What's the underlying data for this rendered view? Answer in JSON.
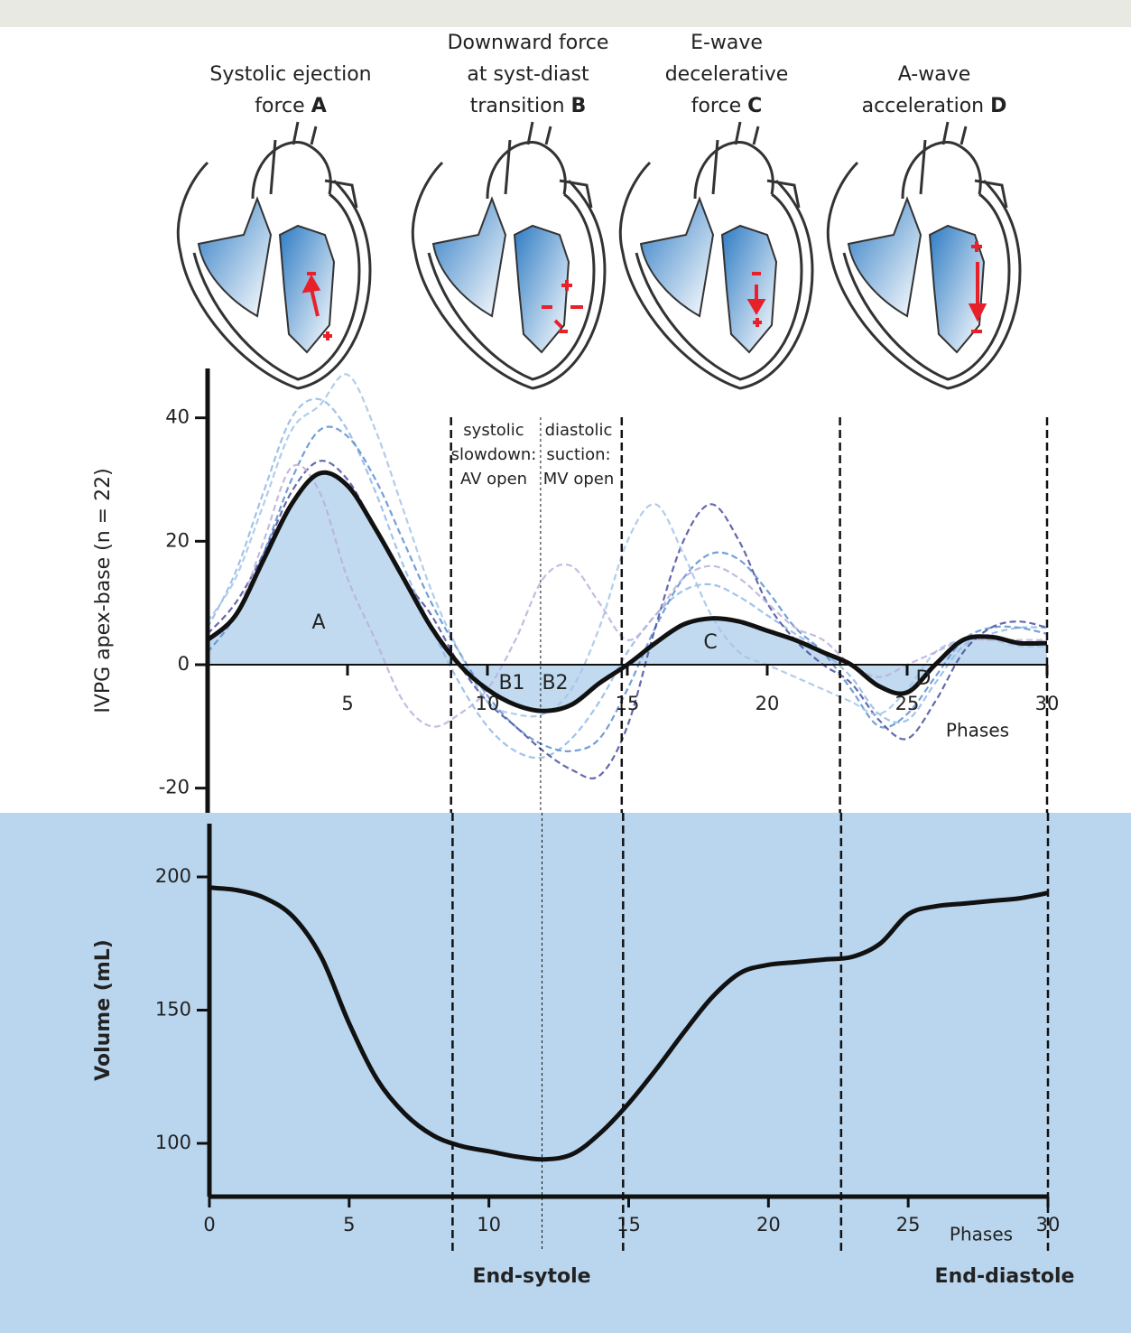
{
  "headings": [
    {
      "lines": [
        "Systolic ejection",
        "force"
      ],
      "letter": "A"
    },
    {
      "lines": [
        "Downward force",
        "at syst-diast",
        "transition"
      ],
      "letter": "B"
    },
    {
      "lines": [
        "E-wave",
        "decelerative",
        "force"
      ],
      "letter": "C"
    },
    {
      "lines": [
        "A-wave",
        "acceleration"
      ],
      "letter": "D"
    }
  ],
  "chart_data": [
    {
      "type": "line",
      "y_label": "IVPG apex-base (n = 22)",
      "x_label": "Phases",
      "x": [
        0,
        1,
        2,
        3,
        4,
        5,
        6,
        7,
        8,
        9,
        10,
        11,
        12,
        13,
        14,
        15,
        16,
        17,
        18,
        19,
        20,
        21,
        22,
        23,
        24,
        25,
        26,
        27,
        28,
        29,
        30
      ],
      "xlim": [
        0,
        30
      ],
      "xticks": [
        5,
        10,
        15,
        20,
        25,
        30
      ],
      "ylim": [
        -24,
        48
      ],
      "yticks": [
        -20,
        0,
        20,
        40
      ],
      "series": [
        {
          "color": "#111111",
          "fill": "#bad6ee",
          "values": [
            4,
            8,
            17,
            26,
            31,
            29,
            22,
            14,
            6,
            0,
            -4,
            -6.5,
            -7.5,
            -6.5,
            -3,
            0,
            3.5,
            6.5,
            7.5,
            7,
            5.5,
            4,
            2,
            0,
            -3.5,
            -4.5,
            0,
            4,
            4.5,
            3.5,
            3.5
          ]
        }
      ],
      "individual_series": [
        {
          "color": "#8fb8e6",
          "values": [
            6,
            15,
            28,
            40,
            43,
            38,
            28,
            16,
            6,
            -3,
            -10,
            -14,
            -15,
            -12,
            -6,
            2,
            8,
            12,
            13,
            11,
            8,
            5,
            2,
            -2,
            -8,
            -9,
            -3,
            3,
            5,
            6,
            6
          ]
        },
        {
          "color": "#5b8fd0",
          "values": [
            2,
            8,
            18,
            30,
            38,
            37,
            30,
            20,
            10,
            2,
            -5,
            -10,
            -13,
            -14,
            -12,
            -4,
            6,
            14,
            18,
            17,
            12,
            6,
            2,
            -4,
            -10,
            -8,
            -2,
            4,
            6,
            6,
            5
          ]
        },
        {
          "color": "#4a4f9e",
          "values": [
            5,
            10,
            18,
            28,
            33,
            30,
            22,
            14,
            8,
            0,
            -6,
            -10,
            -14,
            -17,
            -18,
            -10,
            6,
            20,
            26,
            20,
            10,
            4,
            0,
            -3,
            -9,
            -12,
            -6,
            2,
            6,
            7,
            6
          ]
        },
        {
          "color": "#a5c4e8",
          "values": [
            7,
            14,
            26,
            38,
            42,
            47,
            38,
            25,
            12,
            2,
            -6,
            -8,
            -8,
            -4,
            6,
            20,
            26,
            18,
            8,
            2,
            0,
            -2,
            -4,
            -6,
            -8,
            -4,
            2,
            4,
            4,
            3,
            3
          ]
        },
        {
          "color": "#b8b0dc",
          "values": [
            4,
            8,
            20,
            32,
            28,
            14,
            4,
            -6,
            -10,
            -8,
            -4,
            4,
            14,
            16,
            10,
            4,
            8,
            14,
            16,
            14,
            10,
            6,
            4,
            0,
            -2,
            0,
            2,
            4,
            4,
            4,
            4
          ]
        }
      ],
      "vlines": [
        {
          "x": 8.7,
          "style": "dashed"
        },
        {
          "x": 11.9,
          "style": "dotted"
        },
        {
          "x": 14.8,
          "style": "dashed"
        },
        {
          "x": 22.6,
          "style": "dashed"
        },
        {
          "x": 30,
          "style": "dashed"
        }
      ],
      "annotations": [
        "A",
        "B1",
        "B2",
        "C",
        "D"
      ],
      "phase_notes": [
        [
          "systolic",
          "slowdown:",
          "AV open"
        ],
        [
          "diastolic",
          "suction:",
          "MV open"
        ]
      ]
    },
    {
      "type": "line",
      "y_label": "Volume (mL)",
      "x_label": "Phases",
      "x": [
        0,
        1,
        2,
        3,
        4,
        5,
        6,
        7,
        8,
        9,
        10,
        11,
        12,
        13,
        14,
        15,
        16,
        17,
        18,
        19,
        20,
        21,
        22,
        23,
        24,
        25,
        26,
        27,
        28,
        29,
        30
      ],
      "xlim": [
        0,
        30
      ],
      "xticks": [
        0,
        5,
        10,
        15,
        20,
        25,
        30
      ],
      "ylim": [
        80,
        220
      ],
      "yticks": [
        100,
        150,
        200
      ],
      "series": [
        {
          "color": "#111111",
          "values": [
            196,
            195,
            192,
            185,
            170,
            145,
            124,
            111,
            103,
            99,
            97,
            95,
            94,
            96,
            104,
            115,
            128,
            142,
            155,
            164,
            167,
            168,
            169,
            170,
            175,
            186,
            189,
            190,
            191,
            192,
            194
          ]
        }
      ],
      "vlines": [
        {
          "x": 8.7,
          "style": "dashed"
        },
        {
          "x": 11.9,
          "style": "dotted"
        },
        {
          "x": 14.8,
          "style": "dashed"
        },
        {
          "x": 22.6,
          "style": "dashed"
        },
        {
          "x": 30,
          "style": "dashed"
        }
      ],
      "bottom_labels": [
        "End-sytole",
        "End-diastole"
      ]
    }
  ]
}
